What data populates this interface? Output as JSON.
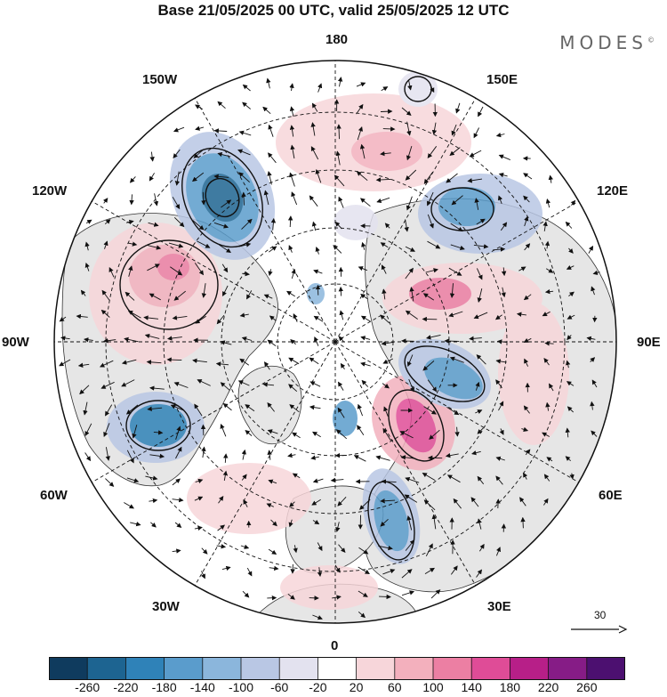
{
  "title": "Base 21/05/2025 00 UTC, valid 25/05/2025 12 UTC",
  "brand": "MODES",
  "brand_mark": "©",
  "longitude_labels": {
    "lon_180": "180",
    "lon_150e": "150E",
    "lon_120e": "120E",
    "lon_90e": "90E",
    "lon_60e": "60E",
    "lon_30e": "30E",
    "lon_0": "0",
    "lon_30w": "30W",
    "lon_60w": "60W",
    "lon_90w": "90W",
    "lon_120w": "120W",
    "lon_150w": "150W"
  },
  "reference_vector": {
    "label": "30"
  },
  "colorbar": {
    "ticks": [
      "-260",
      "-220",
      "-180",
      "-140",
      "-100",
      "-60",
      "-20",
      "20",
      "60",
      "100",
      "140",
      "180",
      "220",
      "260"
    ],
    "colors": [
      "#0f3b5e",
      "#1d6491",
      "#2f82b8",
      "#5a9ccc",
      "#8bb6dc",
      "#b9c7e4",
      "#e3e2ef",
      "#ffffff",
      "#f7d6da",
      "#f3b0bd",
      "#ec7fa3",
      "#df4c97",
      "#b71f88",
      "#861c86",
      "#4c1070"
    ]
  },
  "anomaly_colors": {
    "negative_strong": "#2f82b8",
    "negative_medium": "#8bb6dc",
    "negative_weak": "#e3e2ef",
    "positive_weak": "#f7d6da",
    "positive_medium": "#f3b0bd",
    "positive_strong": "#df4c97",
    "land": "#e8e8e8"
  }
}
